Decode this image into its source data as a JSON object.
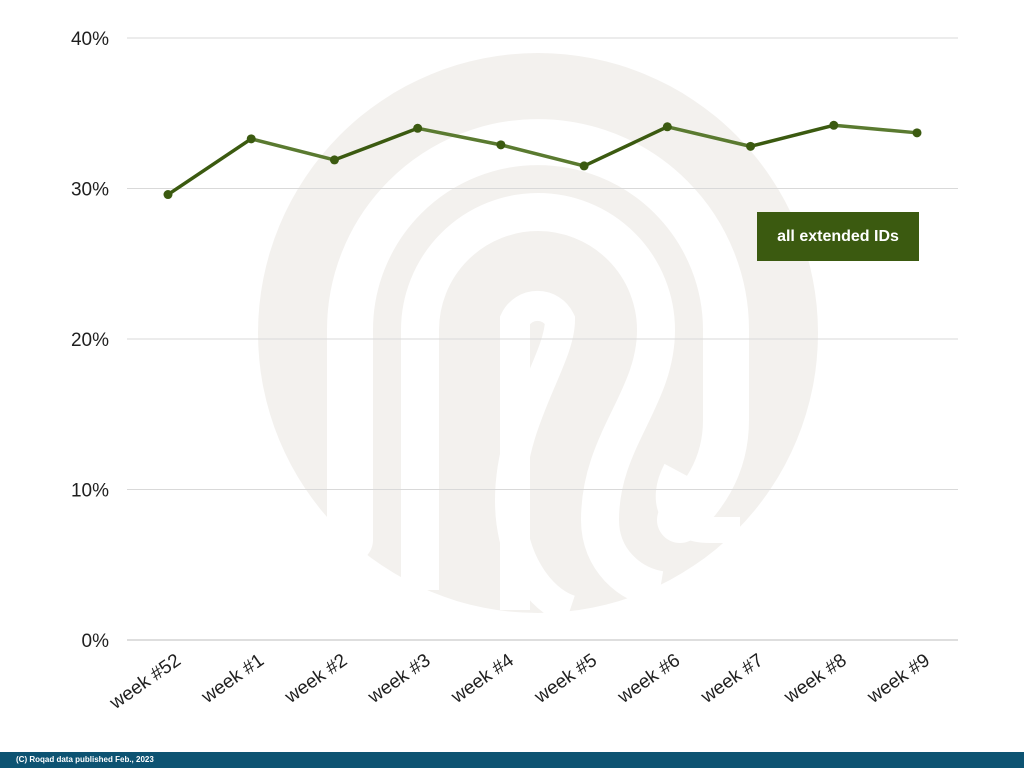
{
  "chart_data": {
    "type": "line",
    "title": "",
    "xlabel": "",
    "ylabel": "",
    "categories": [
      "week #52",
      "week #1",
      "week #2",
      "week #3",
      "week #4",
      "week #5",
      "week #6",
      "week #7",
      "week #8",
      "week #9"
    ],
    "series": [
      {
        "name": "all extended IDs",
        "values": [
          29.6,
          33.3,
          31.9,
          34.0,
          32.9,
          31.5,
          34.1,
          32.8,
          34.2,
          33.7
        ],
        "color": "#3b5a10"
      }
    ],
    "ylim": [
      0,
      40
    ],
    "yticks": [
      0,
      10,
      20,
      30,
      40
    ],
    "ytick_labels": [
      "0%",
      "10%",
      "20%",
      "30%",
      "40%"
    ],
    "grid": true,
    "legend": "annotation-right"
  },
  "footer": {
    "text": "(C) Roqad data published Feb., 2023"
  },
  "colors": {
    "line": "#3b5a10",
    "line_light": "#5a7a30",
    "grid": "#d9d9d9",
    "watermark": "#f2f0ed",
    "footer_bg": "#0d5372"
  },
  "watermark": {
    "icon": "roqad-logo-icon"
  }
}
